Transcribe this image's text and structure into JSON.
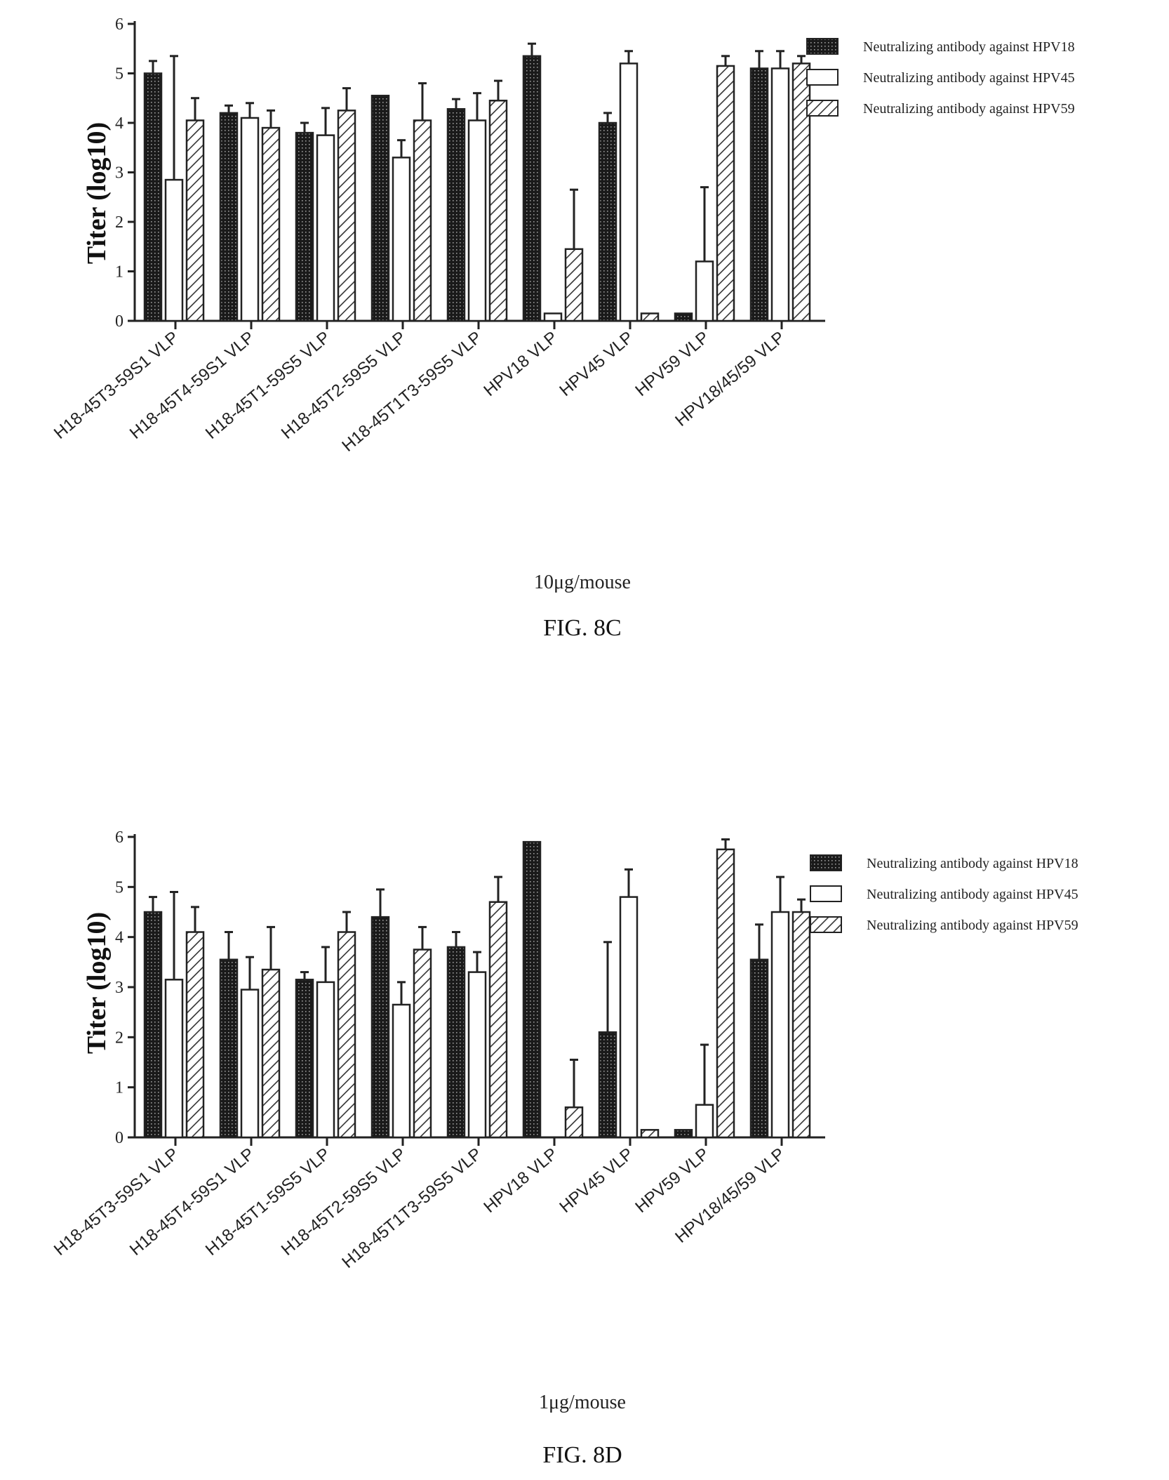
{
  "colors": {
    "series_1": "#222222",
    "series_2": "#ffffff",
    "series_3": "#ffffff",
    "hatch": "#333333"
  },
  "chart_data": [
    {
      "type": "bar",
      "ylabel": "Titer (log10)",
      "ylim": [
        0,
        6
      ],
      "yticks": [
        "0",
        "1",
        "2",
        "3",
        "4",
        "5",
        "6"
      ],
      "legend_position": "top-right",
      "dose_label": "10μg/mouse",
      "figure_label": "FIG. 8C",
      "categories": [
        "H18-45T3-59S1 VLP",
        "H18-45T4-59S1 VLP",
        "H18-45T1-59S5 VLP",
        "H18-45T2-59S5 VLP",
        "H18-45T1T3-59S5 VLP",
        "HPV18 VLP",
        "HPV45 VLP",
        "HPV59 VLP",
        "HPV18/45/59 VLP"
      ],
      "series": [
        {
          "name": "Neutralizing antibody against HPV18",
          "values": [
            5.0,
            4.2,
            3.8,
            4.55,
            4.28,
            5.35,
            4.0,
            0.15,
            5.1
          ],
          "errors": [
            0.25,
            0.15,
            0.2,
            0.0,
            0.2,
            0.25,
            0.2,
            0.0,
            0.35
          ]
        },
        {
          "name": "Neutralizing antibody against HPV45",
          "values": [
            2.85,
            4.1,
            3.75,
            3.3,
            4.05,
            0.15,
            5.2,
            1.2,
            5.1
          ],
          "errors": [
            2.5,
            0.3,
            0.55,
            0.35,
            0.55,
            0.0,
            0.25,
            1.5,
            0.35
          ]
        },
        {
          "name": "Neutralizing antibody against HPV59",
          "values": [
            4.05,
            3.9,
            4.25,
            4.05,
            4.45,
            1.45,
            0.15,
            5.15,
            5.2
          ],
          "errors": [
            0.45,
            0.35,
            0.45,
            0.75,
            0.4,
            1.2,
            0.0,
            0.2,
            0.15
          ]
        }
      ]
    },
    {
      "type": "bar",
      "ylabel": "Titer (log10)",
      "ylim": [
        0,
        6
      ],
      "yticks": [
        "0",
        "1",
        "2",
        "3",
        "4",
        "5",
        "6"
      ],
      "legend_position": "top-right",
      "dose_label": "1μg/mouse",
      "figure_label": "FIG. 8D",
      "categories": [
        "H18-45T3-59S1 VLP",
        "H18-45T4-59S1 VLP",
        "H18-45T1-59S5 VLP",
        "H18-45T2-59S5 VLP",
        "H18-45T1T3-59S5 VLP",
        "HPV18 VLP",
        "HPV45 VLP",
        "HPV59 VLP",
        "HPV18/45/59 VLP"
      ],
      "series": [
        {
          "name": "Neutralizing antibody against HPV18",
          "values": [
            4.5,
            3.55,
            3.15,
            4.4,
            3.8,
            5.9,
            2.1,
            0.15,
            3.55
          ],
          "errors": [
            0.3,
            0.55,
            0.15,
            0.55,
            0.3,
            0.0,
            1.8,
            0.0,
            0.7
          ]
        },
        {
          "name": "Neutralizing antibody against HPV45",
          "values": [
            3.15,
            2.95,
            3.1,
            2.65,
            3.3,
            0.0,
            4.8,
            0.65,
            4.5
          ],
          "errors": [
            1.75,
            0.65,
            0.7,
            0.45,
            0.4,
            0.0,
            0.55,
            1.2,
            0.7
          ]
        },
        {
          "name": "Neutralizing antibody against HPV59",
          "values": [
            4.1,
            3.35,
            4.1,
            3.75,
            4.7,
            0.6,
            0.15,
            5.75,
            4.5
          ],
          "errors": [
            0.5,
            0.85,
            0.4,
            0.45,
            0.5,
            0.95,
            0.0,
            0.2,
            0.25
          ]
        }
      ]
    }
  ]
}
